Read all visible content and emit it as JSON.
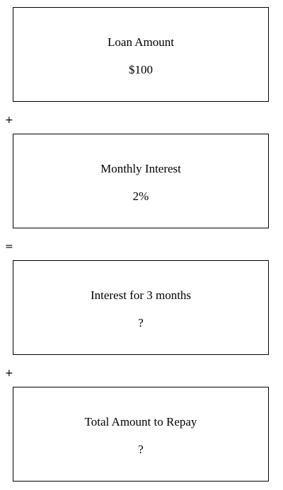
{
  "steps": [
    {
      "label": "Loan Amount",
      "value": "$100"
    },
    {
      "label": "Monthly Interest",
      "value": "2%"
    },
    {
      "label": "Interest for 3 months",
      "value": "?"
    },
    {
      "label": "Total Amount to Repay",
      "value": "?"
    }
  ],
  "operators": [
    "+",
    "=",
    "+"
  ]
}
